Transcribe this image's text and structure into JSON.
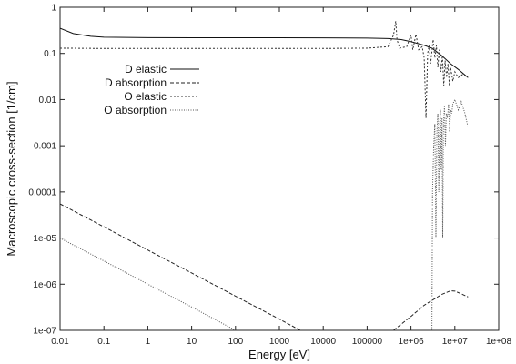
{
  "chart_data": {
    "type": "line",
    "xlabel": "Energy [eV]",
    "ylabel": "Macroscopic cross-section [1/cm]",
    "xscale": "log",
    "yscale": "log",
    "xlim": [
      0.01,
      100000000
    ],
    "ylim": [
      1e-07,
      1
    ],
    "x_ticks": [
      "0.01",
      "0.1",
      "1",
      "10",
      "100",
      "1000",
      "10000",
      "100000",
      "1e+06",
      "1e+07",
      "1e+08"
    ],
    "y_ticks": [
      "1",
      "0.1",
      "0.01",
      "0.001",
      "0.0001",
      "1e-05",
      "1e-06",
      "1e-07"
    ],
    "grid": false,
    "legend_position": "top-left",
    "series": [
      {
        "name": "D elastic",
        "style": "solid",
        "color": "#111111",
        "points": [
          [
            0.01,
            0.35
          ],
          [
            0.02,
            0.27
          ],
          [
            0.05,
            0.235
          ],
          [
            0.1,
            0.225
          ],
          [
            1,
            0.22
          ],
          [
            10,
            0.218
          ],
          [
            100,
            0.218
          ],
          [
            1000,
            0.218
          ],
          [
            10000,
            0.217
          ],
          [
            100000,
            0.215
          ],
          [
            300000,
            0.21
          ],
          [
            600000,
            0.2
          ],
          [
            1000000,
            0.18
          ],
          [
            2000000,
            0.15
          ],
          [
            3000000,
            0.13
          ],
          [
            5000000,
            0.09
          ],
          [
            8000000,
            0.06
          ],
          [
            12000000,
            0.045
          ],
          [
            20000000,
            0.03
          ]
        ]
      },
      {
        "name": "D absorption",
        "style": "dashed",
        "color": "#222222",
        "points": [
          [
            0.01,
            5.5e-05
          ],
          [
            0.1,
            1.75e-05
          ],
          [
            1,
            5.5e-06
          ],
          [
            10,
            1.75e-06
          ],
          [
            100,
            5.5e-07
          ],
          [
            1000,
            1.75e-07
          ],
          [
            3000,
            1e-07
          ],
          [
            null,
            null
          ],
          [
            400000,
            1e-07
          ],
          [
            1000000,
            2e-07
          ],
          [
            2000000,
            3.5e-07
          ],
          [
            5000000,
            6e-07
          ],
          [
            8000000,
            7.2e-07
          ],
          [
            10000000,
            7.1e-07
          ],
          [
            15000000,
            6e-07
          ],
          [
            20000000,
            5.3e-07
          ]
        ]
      },
      {
        "name": "O elastic",
        "style": "dotted",
        "color": "#333333",
        "points": [
          [
            0.01,
            0.13
          ],
          [
            0.1,
            0.128
          ],
          [
            1,
            0.128
          ],
          [
            10,
            0.128
          ],
          [
            100,
            0.128
          ],
          [
            1000,
            0.128
          ],
          [
            10000,
            0.128
          ],
          [
            100000,
            0.13
          ],
          [
            300000,
            0.14
          ],
          [
            400000,
            0.25
          ],
          [
            450000,
            0.5
          ],
          [
            480000,
            0.2
          ],
          [
            550000,
            0.13
          ],
          [
            800000,
            0.14
          ],
          [
            1000000,
            0.25
          ],
          [
            1100000,
            0.12
          ],
          [
            1300000,
            0.26
          ],
          [
            1500000,
            0.12
          ],
          [
            1800000,
            0.14
          ],
          [
            2000000,
            0.08
          ],
          [
            2200000,
            0.004
          ],
          [
            2400000,
            0.1
          ],
          [
            2600000,
            0.15
          ],
          [
            2800000,
            0.06
          ],
          [
            3000000,
            0.11
          ],
          [
            3200000,
            0.2
          ],
          [
            3500000,
            0.08
          ],
          [
            3800000,
            0.15
          ],
          [
            4100000,
            0.05
          ],
          [
            4400000,
            0.12
          ],
          [
            4800000,
            0.04
          ],
          [
            5200000,
            0.09
          ],
          [
            5600000,
            0.02
          ],
          [
            6000000,
            0.07
          ],
          [
            6500000,
            0.03
          ],
          [
            7000000,
            0.06
          ],
          [
            7500000,
            0.02
          ],
          [
            8000000,
            0.05
          ],
          [
            9000000,
            0.025
          ],
          [
            10000000,
            0.04
          ],
          [
            12000000,
            0.03
          ],
          [
            15000000,
            0.035
          ],
          [
            20000000,
            0.03
          ]
        ]
      },
      {
        "name": "O absorption",
        "style": "fine-dotted",
        "color": "#555555",
        "points": [
          [
            0.01,
            1e-05
          ],
          [
            0.1,
            3.2e-06
          ],
          [
            1,
            1e-06
          ],
          [
            10,
            3.2e-07
          ],
          [
            100,
            1e-07
          ],
          [
            null,
            null
          ],
          [
            3000000,
            1e-07
          ],
          [
            3100000,
            0.0001
          ],
          [
            3300000,
            0.001
          ],
          [
            3500000,
            0.003
          ],
          [
            3700000,
            1e-05
          ],
          [
            3900000,
            0.002
          ],
          [
            4100000,
            0.005
          ],
          [
            4300000,
            0.0001
          ],
          [
            4500000,
            0.003
          ],
          [
            4700000,
            0.006
          ],
          [
            4900000,
            0.0003
          ],
          [
            5100000,
            0.004
          ],
          [
            5300000,
            1e-05
          ],
          [
            5500000,
            0.003
          ],
          [
            5800000,
            0.007
          ],
          [
            6100000,
            0.001
          ],
          [
            6400000,
            0.005
          ],
          [
            6800000,
            0.004
          ],
          [
            7200000,
            0.008
          ],
          [
            7600000,
            0.002
          ],
          [
            8000000,
            0.006
          ],
          [
            8500000,
            0.005
          ],
          [
            9000000,
            0.008
          ],
          [
            10000000,
            0.01
          ],
          [
            12000000,
            0.006
          ],
          [
            14000000,
            0.009
          ],
          [
            17000000,
            0.005
          ],
          [
            20000000,
            0.0025
          ]
        ]
      }
    ]
  }
}
